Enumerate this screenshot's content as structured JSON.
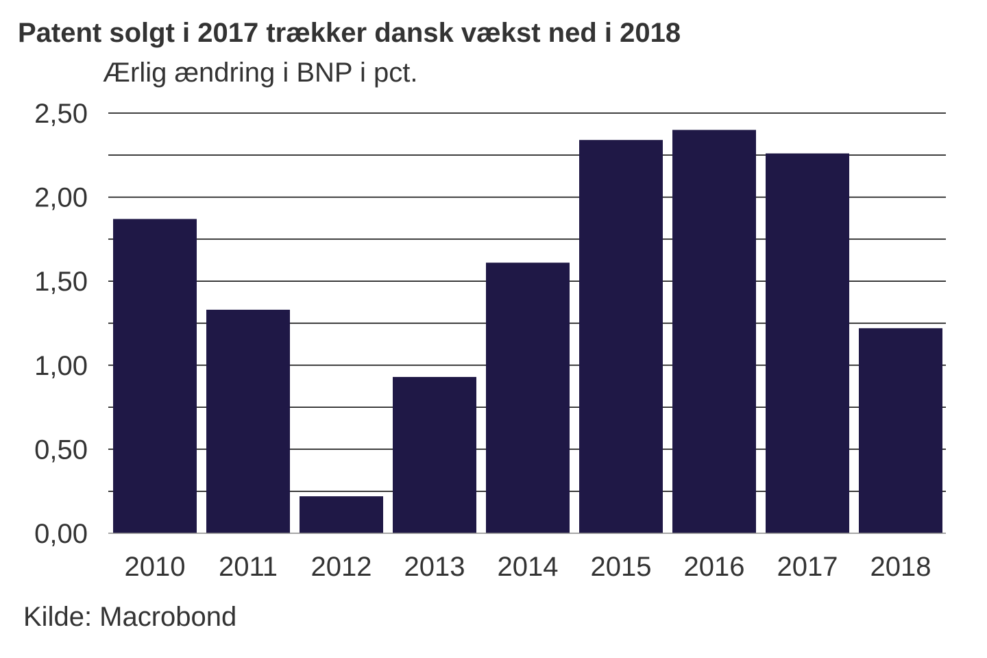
{
  "chart_data": {
    "type": "bar",
    "title": "Patent solgt i 2017 trækker dansk vækst ned i 2018",
    "subtitle": "Ærlig ændring i BNP i pct.",
    "source": "Kilde: Macrobond",
    "categories": [
      "2010",
      "2011",
      "2012",
      "2013",
      "2014",
      "2015",
      "2016",
      "2017",
      "2018"
    ],
    "values": [
      1.87,
      1.33,
      0.22,
      0.93,
      1.61,
      2.34,
      2.4,
      2.26,
      1.22
    ],
    "ylim": [
      0,
      2.5
    ],
    "yticks": [
      "0,00",
      "0,50",
      "1,00",
      "1,50",
      "2,00",
      "2,50"
    ],
    "grid": true,
    "minor_grid_step": 0.25,
    "bar_color": "#1f1846",
    "grid_color": "#000000",
    "xlabel": "",
    "ylabel": ""
  }
}
